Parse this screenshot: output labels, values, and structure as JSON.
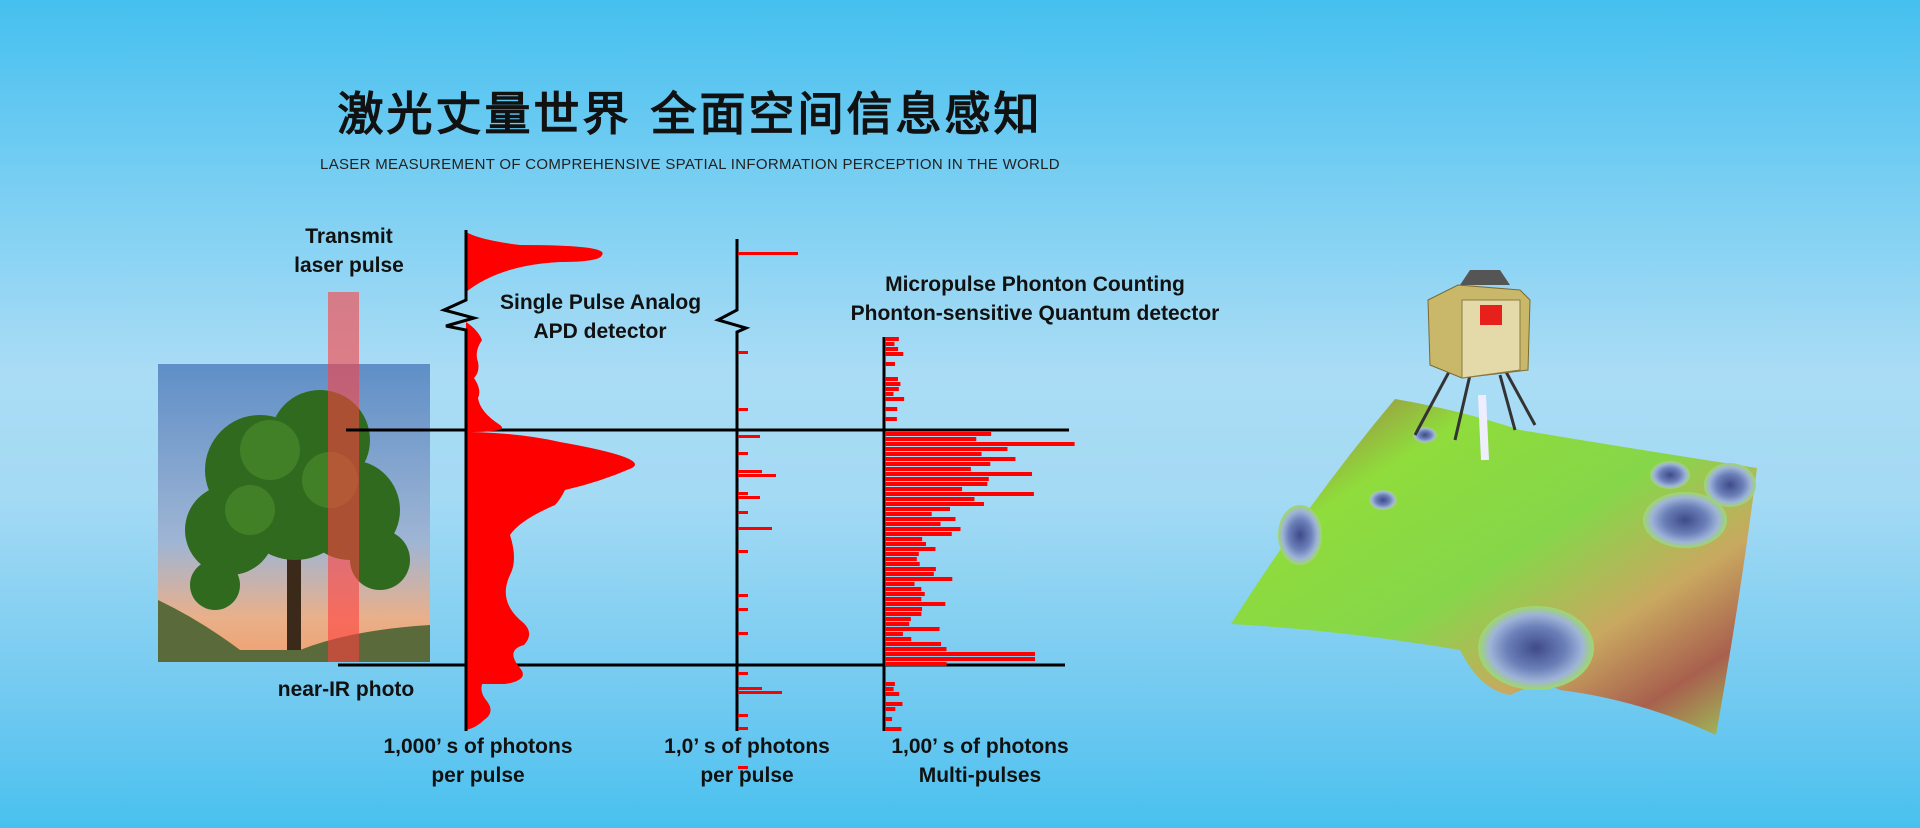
{
  "header": {
    "title": "激光丈量世界 全面空间信息感知",
    "subtitle": "LASER MEASUREMENT OF COMPREHENSIVE SPATIAL INFORMATION PERCEPTION IN THE WORLD"
  },
  "diagram": {
    "transmit_label": [
      "Transmit",
      "laser pulse"
    ],
    "photo_label": "near-IR photo",
    "apd_label": [
      "Single Pulse Analog",
      "APD detector"
    ],
    "quantum_label": [
      "Micropulse Phonton Counting",
      "Phonton-sensitive Quantum detector"
    ],
    "axis_labels": [
      [
        "1,000’ s of photons",
        "per pulse"
      ],
      [
        "1,0’ s of photons",
        "per pulse"
      ],
      [
        "1,00’ s of photons",
        "Multi-pulses"
      ]
    ]
  },
  "colors": {
    "signal": "#ff0000",
    "laser_beam": "#ff5a5a",
    "axis": "#000000"
  }
}
